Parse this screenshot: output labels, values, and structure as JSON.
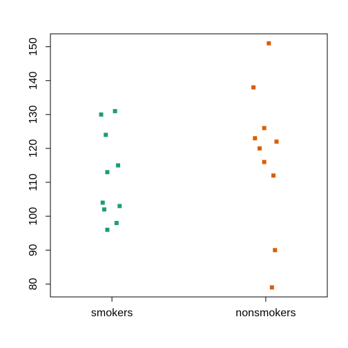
{
  "chart_data": {
    "type": "scatter",
    "title": "",
    "xlabel": "",
    "ylabel": "",
    "categories": [
      "smokers",
      "nonsmokers"
    ],
    "ylim": [
      76.2,
      153.8
    ],
    "yticks": [
      80,
      90,
      100,
      110,
      120,
      130,
      140,
      150
    ],
    "grid": false,
    "legend": "none",
    "marker": "square",
    "series": [
      {
        "category": "smokers",
        "color": "#1b9e77",
        "points": [
          {
            "jitter": -0.07,
            "y": 130
          },
          {
            "jitter": 0.02,
            "y": 131
          },
          {
            "jitter": -0.04,
            "y": 124
          },
          {
            "jitter": 0.04,
            "y": 115
          },
          {
            "jitter": -0.03,
            "y": 113
          },
          {
            "jitter": -0.06,
            "y": 104
          },
          {
            "jitter": -0.05,
            "y": 102
          },
          {
            "jitter": 0.05,
            "y": 103
          },
          {
            "jitter": 0.03,
            "y": 98
          },
          {
            "jitter": -0.03,
            "y": 96
          }
        ]
      },
      {
        "category": "nonsmokers",
        "color": "#d95f02",
        "points": [
          {
            "jitter": 0.02,
            "y": 151
          },
          {
            "jitter": -0.08,
            "y": 138
          },
          {
            "jitter": -0.01,
            "y": 126
          },
          {
            "jitter": -0.07,
            "y": 123
          },
          {
            "jitter": 0.07,
            "y": 122
          },
          {
            "jitter": -0.04,
            "y": 120
          },
          {
            "jitter": -0.01,
            "y": 116
          },
          {
            "jitter": 0.05,
            "y": 112
          },
          {
            "jitter": 0.06,
            "y": 90
          },
          {
            "jitter": 0.04,
            "y": 79
          }
        ]
      }
    ]
  }
}
